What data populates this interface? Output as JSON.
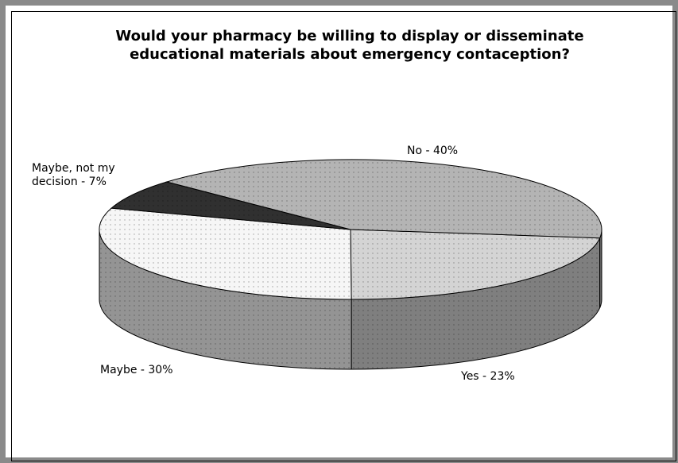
{
  "chart_data": {
    "type": "pie",
    "title": "Would your pharmacy be willing to display or disseminate educational materials about emergency contaception?",
    "values": [
      23,
      30,
      7,
      40
    ],
    "value_labels": [
      "Yes - 23%",
      "Maybe - 30%",
      "Maybe, not my decision - 7%",
      "No - 40%"
    ],
    "colors": [
      "#d4d4d4",
      "#f6f6f6",
      "#303030",
      "#b4b4b4"
    ],
    "three_d": true
  }
}
